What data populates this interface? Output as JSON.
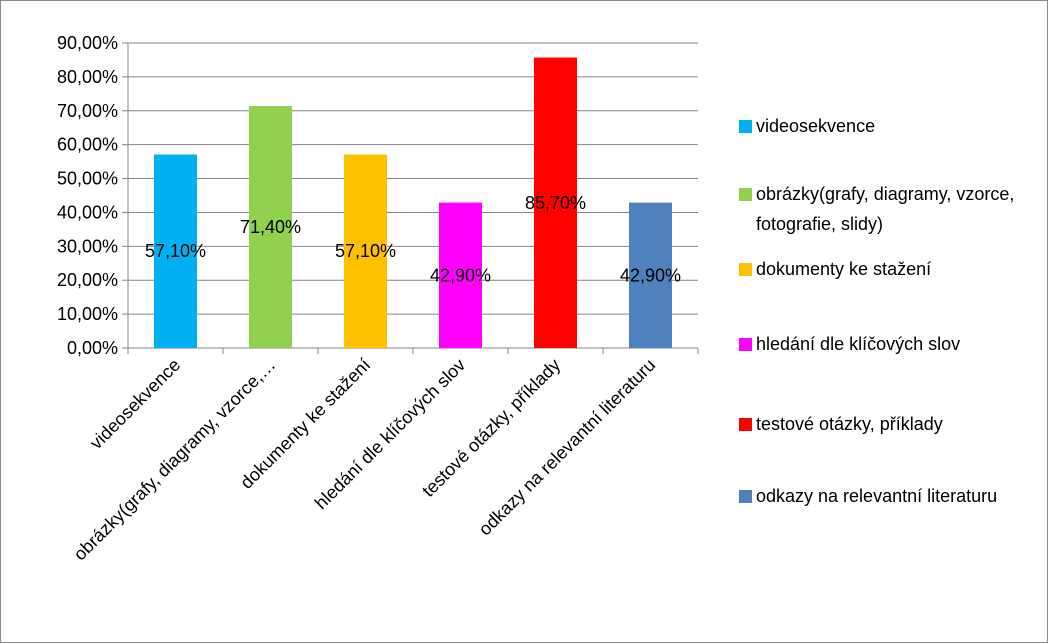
{
  "chart_data": {
    "type": "bar",
    "categories": [
      "videosekvence",
      "obrázky(grafy, diagramy, vzorce,…",
      "dokumenty ke stažení",
      "hledání dle klíčových slov",
      "testové otázky, příklady",
      "odkazy na relevantní literaturu"
    ],
    "values": [
      57.1,
      71.4,
      57.1,
      42.9,
      85.7,
      42.9
    ],
    "data_labels": [
      "57,10%",
      "71,40%",
      "57,10%",
      "42,90%",
      "85,70%",
      "42,90%"
    ],
    "bar_colors": [
      "#00b0f0",
      "#92d050",
      "#ffc000",
      "#ff00ff",
      "#ff0000",
      "#4f81bd"
    ],
    "ylim": [
      0,
      90
    ],
    "yticks": [
      0,
      10,
      20,
      30,
      40,
      50,
      60,
      70,
      80,
      90
    ],
    "ytick_labels": [
      "0,00%",
      "10,00%",
      "20,00%",
      "30,00%",
      "40,00%",
      "50,00%",
      "60,00%",
      "70,00%",
      "80,00%",
      "90,00%"
    ],
    "grid": true,
    "legend_position": "right",
    "legend": [
      {
        "label": "videosekvence",
        "color": "#00b0f0"
      },
      {
        "label": "obrázky(grafy, diagramy, vzorce, fotografie, slidy)",
        "color": "#92d050"
      },
      {
        "label": "dokumenty ke stažení",
        "color": "#ffc000"
      },
      {
        "label": "hledání dle klíčových slov",
        "color": "#ff00ff"
      },
      {
        "label": "testové otázky, příklady",
        "color": "#ff0000"
      },
      {
        "label": "odkazy na relevantní literaturu",
        "color": "#4f81bd"
      }
    ],
    "title": "",
    "xlabel": "",
    "ylabel": ""
  }
}
